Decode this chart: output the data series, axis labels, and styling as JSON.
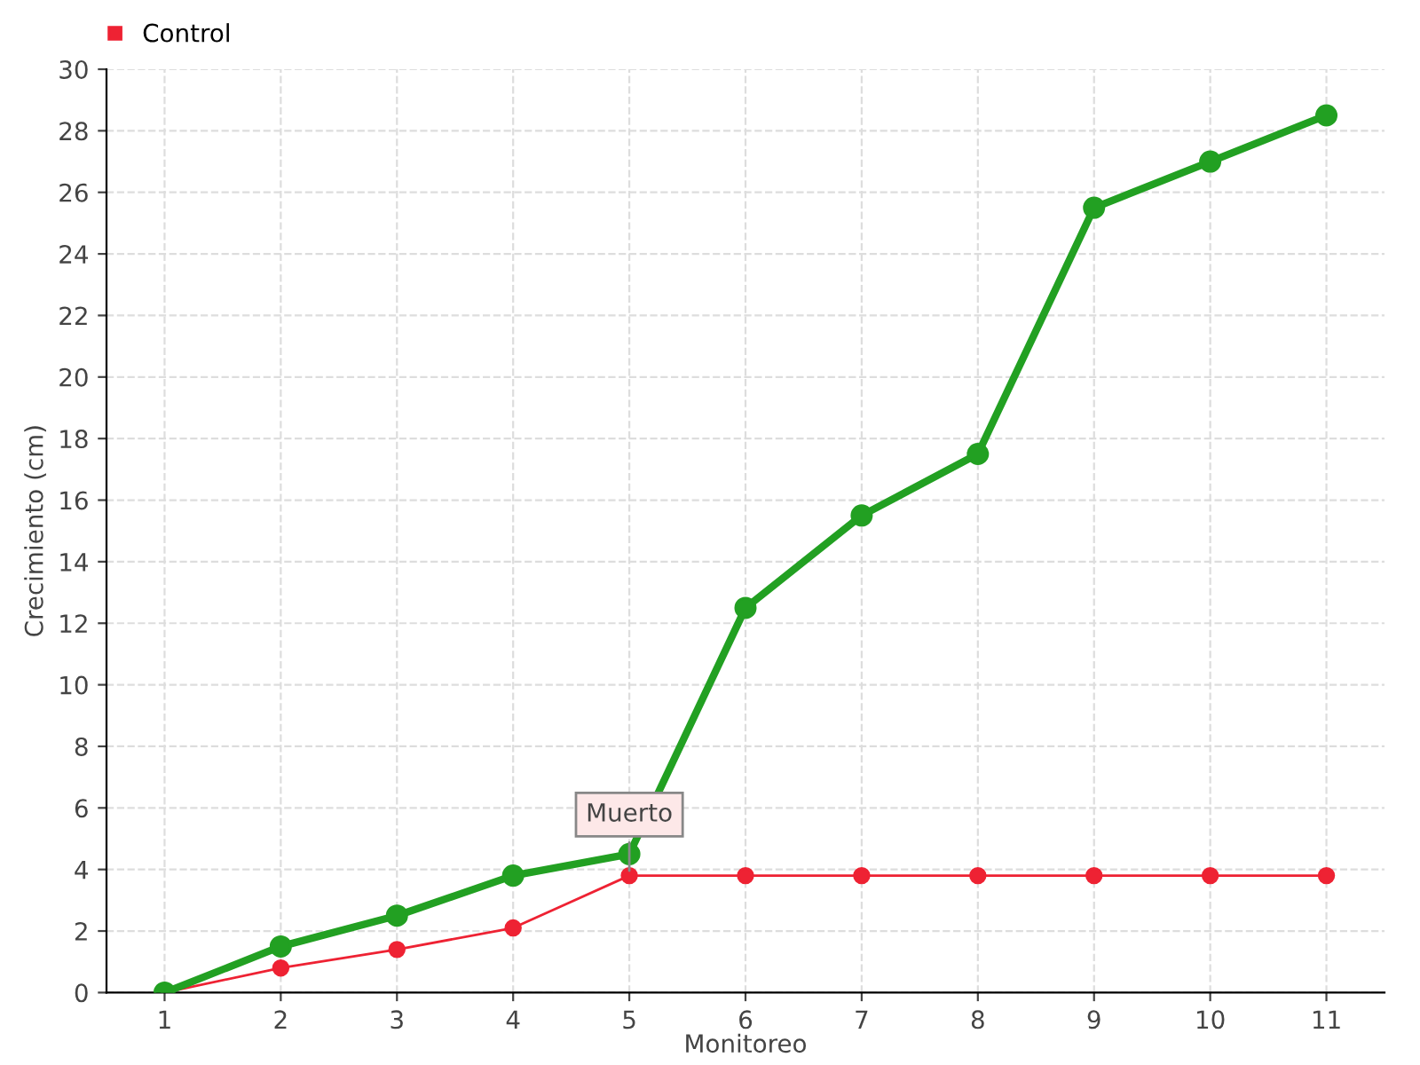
{
  "chart_data": {
    "type": "line",
    "xlabel": "Monitoreo",
    "ylabel": "Crecimiento (cm)",
    "x": [
      1,
      2,
      3,
      4,
      5,
      6,
      7,
      8,
      9,
      10,
      11
    ],
    "series": [
      {
        "color": "#22a022",
        "values": [
          0,
          1.5,
          2.5,
          3.8,
          4.5,
          12.5,
          15.5,
          17.5,
          25.5,
          27,
          28.5
        ]
      },
      {
        "name": "Control",
        "color": "#ee2233",
        "values": [
          0,
          0.8,
          1.4,
          2.1,
          3.8,
          3.8,
          3.8,
          3.8,
          3.8,
          3.8,
          3.8
        ]
      }
    ],
    "annotations": [
      {
        "text": "Muerto",
        "x": 5,
        "y": 3.8
      }
    ],
    "xlim": [
      0.5,
      11.5
    ],
    "xticks": [
      1,
      2,
      3,
      4,
      5,
      6,
      7,
      8,
      9,
      10,
      11
    ],
    "ylim": [
      0,
      30
    ],
    "yticks": [
      0,
      2,
      4,
      6,
      8,
      10,
      12,
      14,
      16,
      18,
      20,
      22,
      24,
      26,
      28,
      30
    ],
    "grid": true,
    "legend": "top left",
    "marker": "circle",
    "line_style": "solid"
  }
}
